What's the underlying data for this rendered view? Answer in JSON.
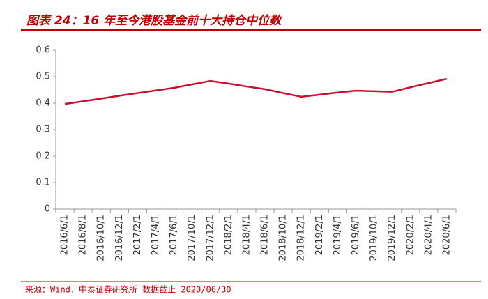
{
  "chart_data": {
    "type": "line",
    "title": "图表 24：16 年至今港股基金前十大持仓中位数",
    "source": "来源：Wind，中泰证券研究所 数据截止 2020/06/30",
    "categories": [
      "2016/6/1",
      "2016/8/1",
      "2016/10/1",
      "2016/12/1",
      "2017/2/1",
      "2017/4/1",
      "2017/6/1",
      "2017/10/1",
      "2017/12/1",
      "2018/2/1",
      "2018/4/1",
      "2018/6/1",
      "2018/10/1",
      "2018/12/1",
      "2019/2/1",
      "2019/4/1",
      "2019/6/1",
      "2019/10/1",
      "2019/12/1",
      "2020/2/1",
      "2020/4/1",
      "2020/6/1"
    ],
    "values": [
      0.397,
      0.407,
      0.417,
      0.428,
      0.438,
      0.448,
      0.458,
      0.471,
      0.484,
      0.474,
      0.463,
      0.453,
      0.438,
      0.424,
      0.432,
      0.44,
      0.447,
      0.445,
      0.443,
      0.46,
      0.476,
      0.492
    ],
    "color": "#c8102e",
    "ylim": [
      0,
      0.6
    ],
    "yticks": [
      0,
      0.1,
      0.2,
      0.3,
      0.4,
      0.5,
      0.6
    ],
    "grid": false
  }
}
